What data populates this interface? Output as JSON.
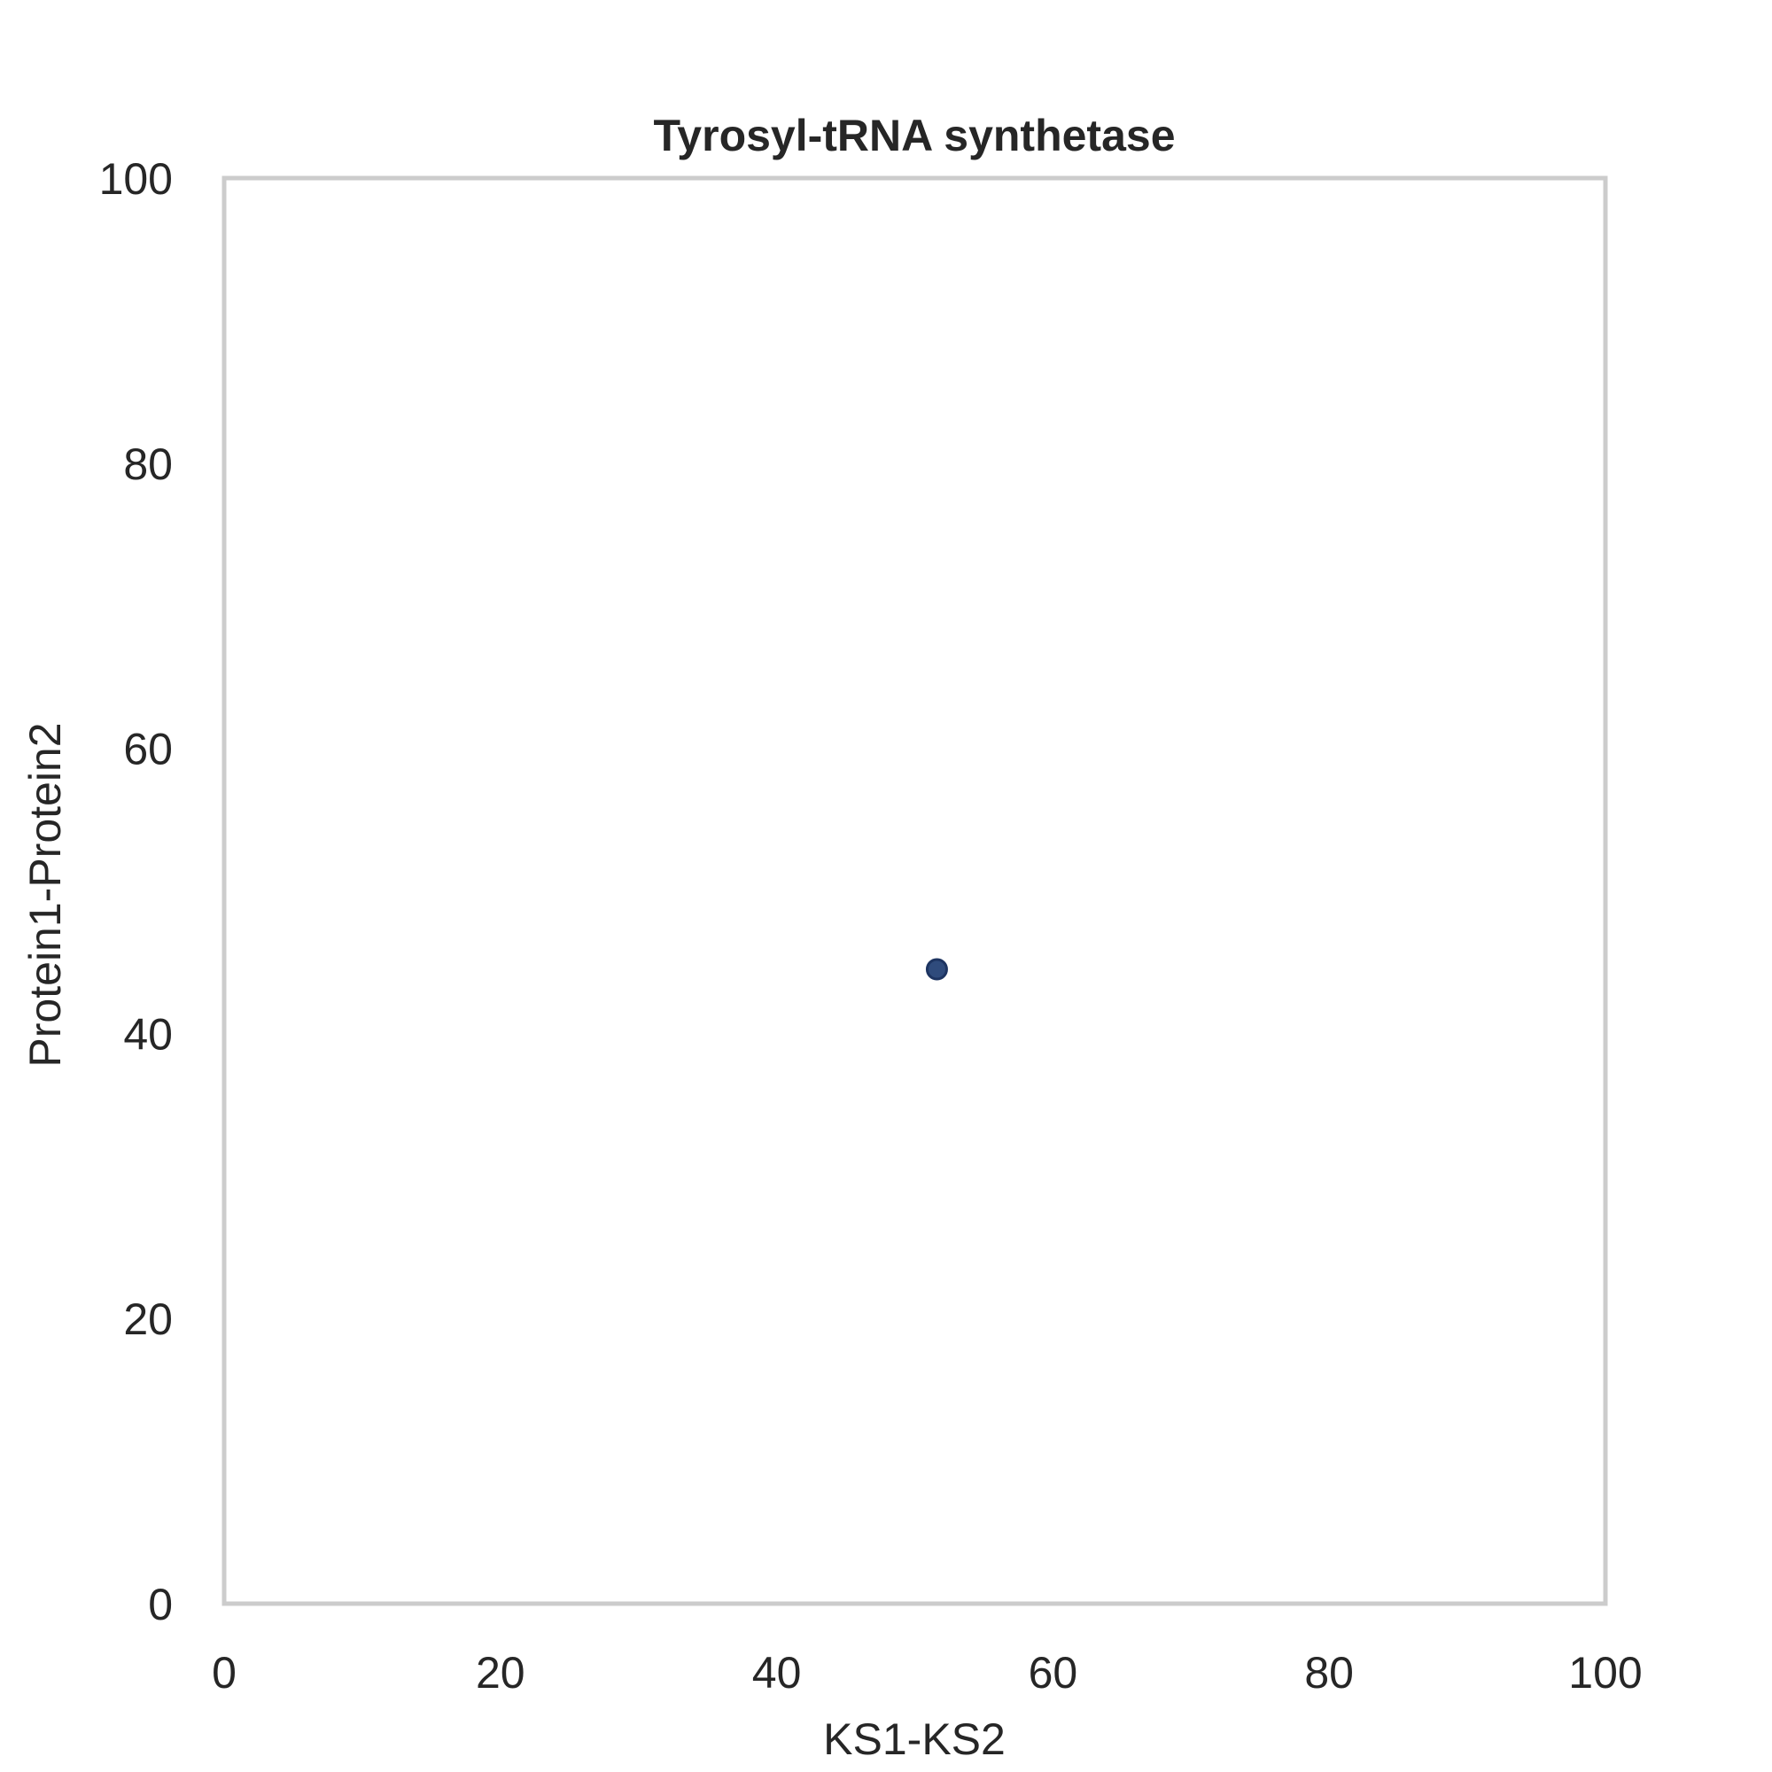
{
  "chart_data": {
    "type": "scatter",
    "title": "Tyrosyl-tRNA synthetase",
    "xlabel": "KS1-KS2",
    "ylabel": "Protein1-Protein2",
    "xlim": [
      0,
      100
    ],
    "ylim": [
      0,
      100
    ],
    "xticks": [
      "0",
      "20",
      "40",
      "60",
      "80",
      "100"
    ],
    "yticks": [
      "0",
      "20",
      "40",
      "60",
      "80",
      "100"
    ],
    "grid": false,
    "points": [
      {
        "x": 51.6,
        "y": 44.5
      }
    ],
    "colors": {
      "point_fill": "#2f4b7c",
      "point_edge": "#1d3461",
      "frame": "#cccccc",
      "text": "#262626"
    }
  }
}
